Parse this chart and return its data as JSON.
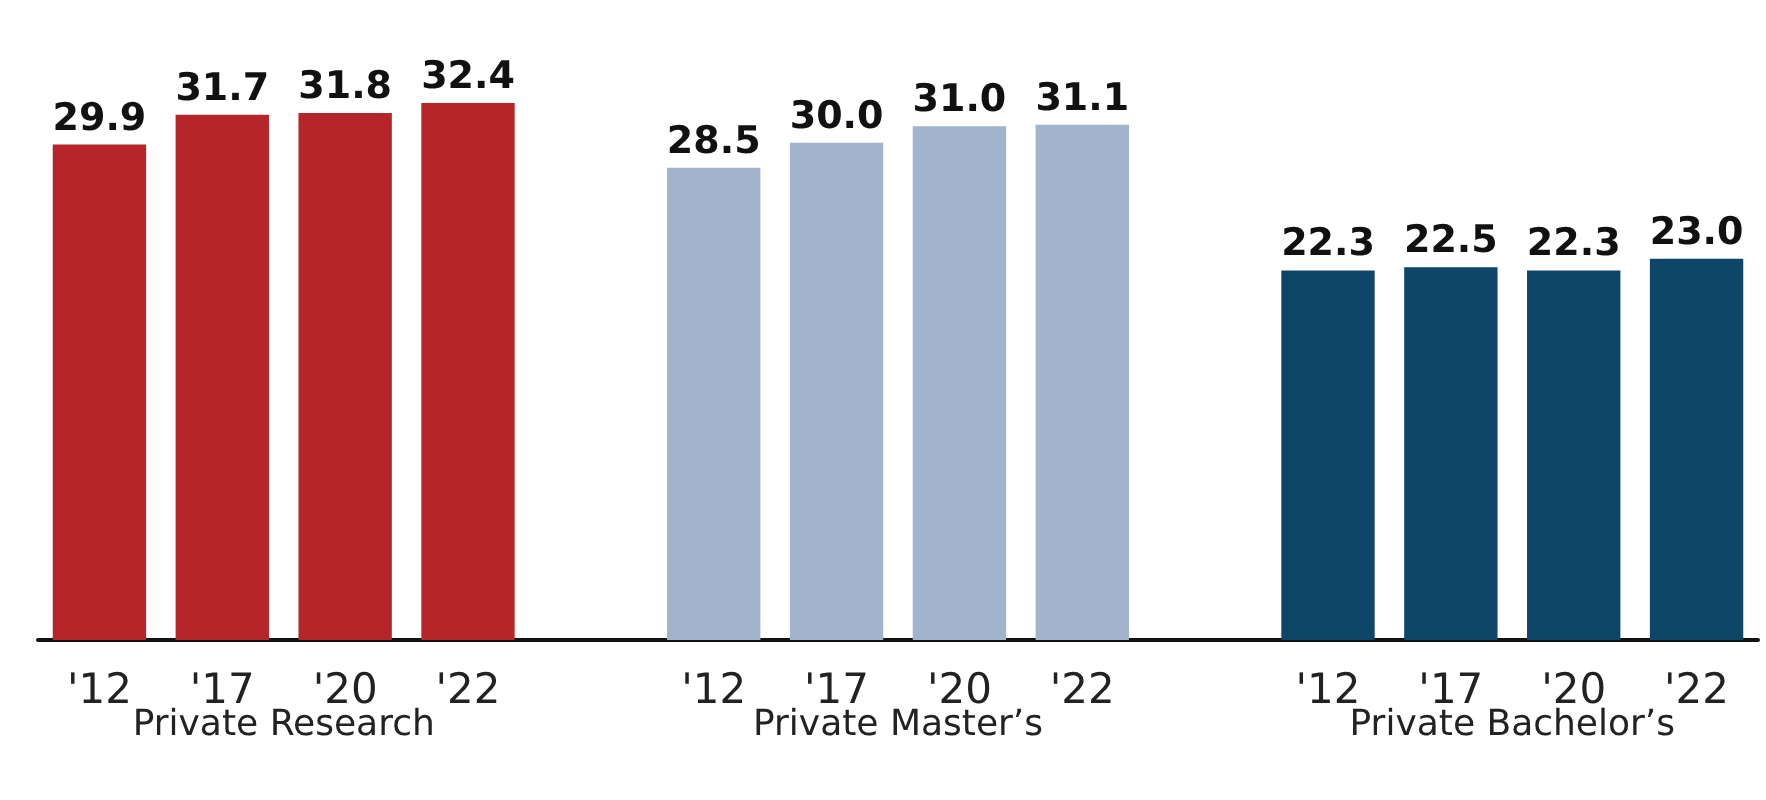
{
  "chart_data": {
    "type": "bar",
    "categories": [
      "'12",
      "'17",
      "'20",
      "'22",
      null,
      "'12",
      "'17",
      "'20",
      "'22",
      null,
      "'12",
      "'17",
      "'20",
      "'22"
    ],
    "series": [
      {
        "name": "Private Research",
        "color": "#b5252a",
        "values": [
          29.9,
          31.7,
          31.8,
          32.4,
          null,
          null,
          null,
          null,
          null,
          null,
          null,
          null,
          null,
          null
        ],
        "value_labels": [
          "29.9",
          "31.7",
          "31.8",
          "32.4",
          null,
          null,
          null,
          null,
          null,
          null,
          null,
          null,
          null,
          null
        ]
      },
      {
        "name": "Private Master’s",
        "color": "#a2b3cc",
        "values": [
          null,
          null,
          null,
          null,
          null,
          28.5,
          30.0,
          31.0,
          31.1,
          null,
          null,
          null,
          null,
          null
        ],
        "value_labels": [
          null,
          null,
          null,
          null,
          null,
          "28.5",
          "30.0",
          "31.0",
          "31.1",
          null,
          null,
          null,
          null,
          null
        ]
      },
      {
        "name": "Private Bachelor’s",
        "color": "#0d4668",
        "values": [
          null,
          null,
          null,
          null,
          null,
          null,
          null,
          null,
          null,
          null,
          22.3,
          22.5,
          22.3,
          23.0
        ],
        "value_labels": [
          null,
          null,
          null,
          null,
          null,
          null,
          null,
          null,
          null,
          null,
          "22.3",
          "22.5",
          "22.3",
          "23.0"
        ]
      }
    ],
    "tick_labels": "x",
    "legend": false
  }
}
